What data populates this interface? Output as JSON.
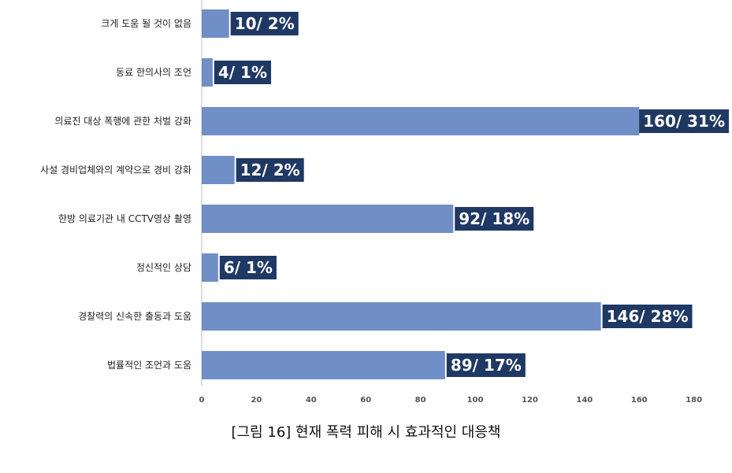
{
  "caption": "[그림 16] 현재 폭력 피해 시 효과적인 대응책",
  "colors": {
    "bar": "#6f8fc6",
    "label_box": "#1f3864",
    "axis": "#bfbfbf"
  },
  "chart_data": {
    "type": "bar",
    "orientation": "horizontal",
    "categories": [
      "크게 도움 될 것이 없음",
      "동료 한의사의 조언",
      "의료진 대상 폭행에 관한 처벌 강화",
      "사설 경비업체와의 계약으로 경비 강화",
      "한방 의료기관 내 CCTV영상 촬영",
      "정신적인 상담",
      "경찰력의 신속한 출동과 도움",
      "법률적인 조언과 도움"
    ],
    "values": [
      10,
      4,
      160,
      12,
      92,
      6,
      146,
      89
    ],
    "data_labels": [
      "10/ 2%",
      "4/ 1%",
      "160/ 31%",
      "12/ 2%",
      "92/ 18%",
      "6/ 1%",
      "146/ 28%",
      "89/ 17%"
    ],
    "xlim": [
      0,
      180
    ],
    "xticks": [
      0,
      20,
      40,
      60,
      80,
      100,
      120,
      140,
      160,
      180
    ],
    "xlabel": "",
    "ylabel": ""
  }
}
